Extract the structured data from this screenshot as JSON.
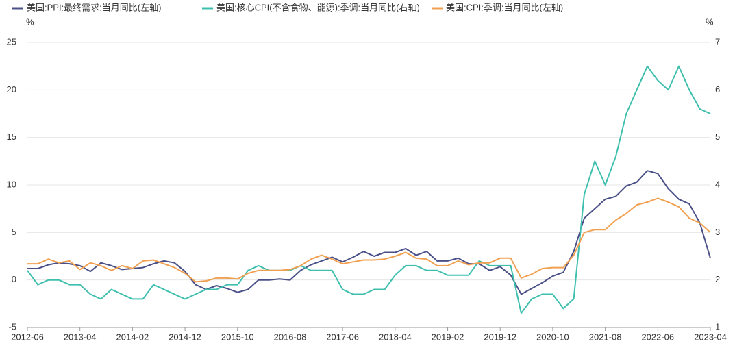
{
  "chart_data": {
    "type": "line",
    "y_unit": "%",
    "y2_unit": "%",
    "categories": [
      "2012-06",
      null,
      null,
      null,
      null,
      "2013-04",
      null,
      null,
      null,
      null,
      "2014-02",
      null,
      null,
      null,
      null,
      "2014-12",
      null,
      null,
      null,
      null,
      "2015-10",
      null,
      null,
      null,
      null,
      "2016-08",
      null,
      null,
      null,
      null,
      "2017-06",
      null,
      null,
      null,
      null,
      "2018-04",
      null,
      null,
      null,
      null,
      "2019-02",
      null,
      null,
      null,
      null,
      "2019-12",
      null,
      null,
      null,
      null,
      "2020-10",
      null,
      null,
      null,
      null,
      "2021-08",
      null,
      null,
      null,
      null,
      "2022-06",
      null,
      null,
      null,
      null,
      "2023-04"
    ],
    "series": [
      {
        "name": "美国:PPI:最终需求:当月同比(左轴)",
        "color": "#4a5088",
        "axis": "y",
        "values": [
          1.2,
          1.2,
          1.6,
          1.8,
          1.7,
          1.5,
          0.9,
          1.8,
          1.5,
          1.1,
          1.2,
          1.3,
          1.7,
          2.0,
          1.8,
          0.9,
          -0.5,
          -1.0,
          -0.6,
          -0.9,
          -1.3,
          -1.0,
          0.0,
          0.0,
          0.1,
          0.0,
          1.0,
          1.6,
          2.0,
          2.4,
          1.9,
          2.4,
          3.0,
          2.5,
          2.9,
          2.9,
          3.3,
          2.6,
          3.0,
          2.0,
          2.0,
          2.3,
          1.7,
          1.7,
          1.0,
          1.4,
          0.5,
          -1.5,
          -0.9,
          -0.3,
          0.4,
          0.8,
          3.0,
          6.5,
          7.5,
          8.5,
          8.8,
          9.9,
          10.3,
          11.5,
          11.2,
          9.6,
          8.5,
          8.0,
          6.0,
          2.3
        ]
      },
      {
        "name": "美国:核心CPI(不含食物、能源):季调:当月同比(右轴)",
        "color": "#3ebfae",
        "axis": "y2",
        "values": [
          2.2,
          1.9,
          2.0,
          2.0,
          1.9,
          1.9,
          1.7,
          1.6,
          1.8,
          1.7,
          1.6,
          1.6,
          1.9,
          1.8,
          1.7,
          1.6,
          1.7,
          1.8,
          1.8,
          1.9,
          1.9,
          2.2,
          2.3,
          2.2,
          2.2,
          2.2,
          2.3,
          2.2,
          2.2,
          2.2,
          1.8,
          1.7,
          1.7,
          1.8,
          1.8,
          2.1,
          2.3,
          2.3,
          2.2,
          2.2,
          2.1,
          2.1,
          2.1,
          2.4,
          2.3,
          2.3,
          2.3,
          1.3,
          1.6,
          1.7,
          1.7,
          1.4,
          1.6,
          3.8,
          4.5,
          4.0,
          4.6,
          5.5,
          6.0,
          6.5,
          6.2,
          6.0,
          6.5,
          6.0,
          5.6,
          5.5
        ]
      },
      {
        "name": "美国:CPI:季调:当月同比(左轴)",
        "color": "#f0a050",
        "axis": "y",
        "values": [
          1.7,
          1.7,
          2.2,
          1.8,
          2.0,
          1.1,
          1.8,
          1.5,
          1.0,
          1.5,
          1.2,
          2.0,
          2.1,
          1.7,
          1.3,
          0.7,
          -0.2,
          -0.1,
          0.2,
          0.2,
          0.1,
          0.7,
          1.0,
          1.0,
          1.0,
          1.1,
          1.5,
          2.2,
          2.6,
          2.2,
          1.7,
          1.9,
          2.1,
          2.1,
          2.2,
          2.5,
          2.9,
          2.3,
          2.2,
          1.5,
          1.5,
          2.0,
          1.6,
          1.8,
          1.8,
          2.3,
          2.3,
          0.2,
          0.6,
          1.2,
          1.3,
          1.3,
          2.6,
          5.0,
          5.3,
          5.3,
          6.3,
          7.0,
          7.9,
          8.2,
          8.6,
          8.2,
          7.7,
          6.5,
          6.0,
          5.0
        ]
      }
    ],
    "ylim": [
      -5,
      25
    ],
    "yticks": [
      -5,
      0,
      5,
      10,
      15,
      20,
      25
    ],
    "y2lim": [
      1,
      7
    ],
    "y2ticks": [
      1,
      2,
      3,
      4,
      5,
      6,
      7
    ],
    "grid": true,
    "legend": "top"
  }
}
